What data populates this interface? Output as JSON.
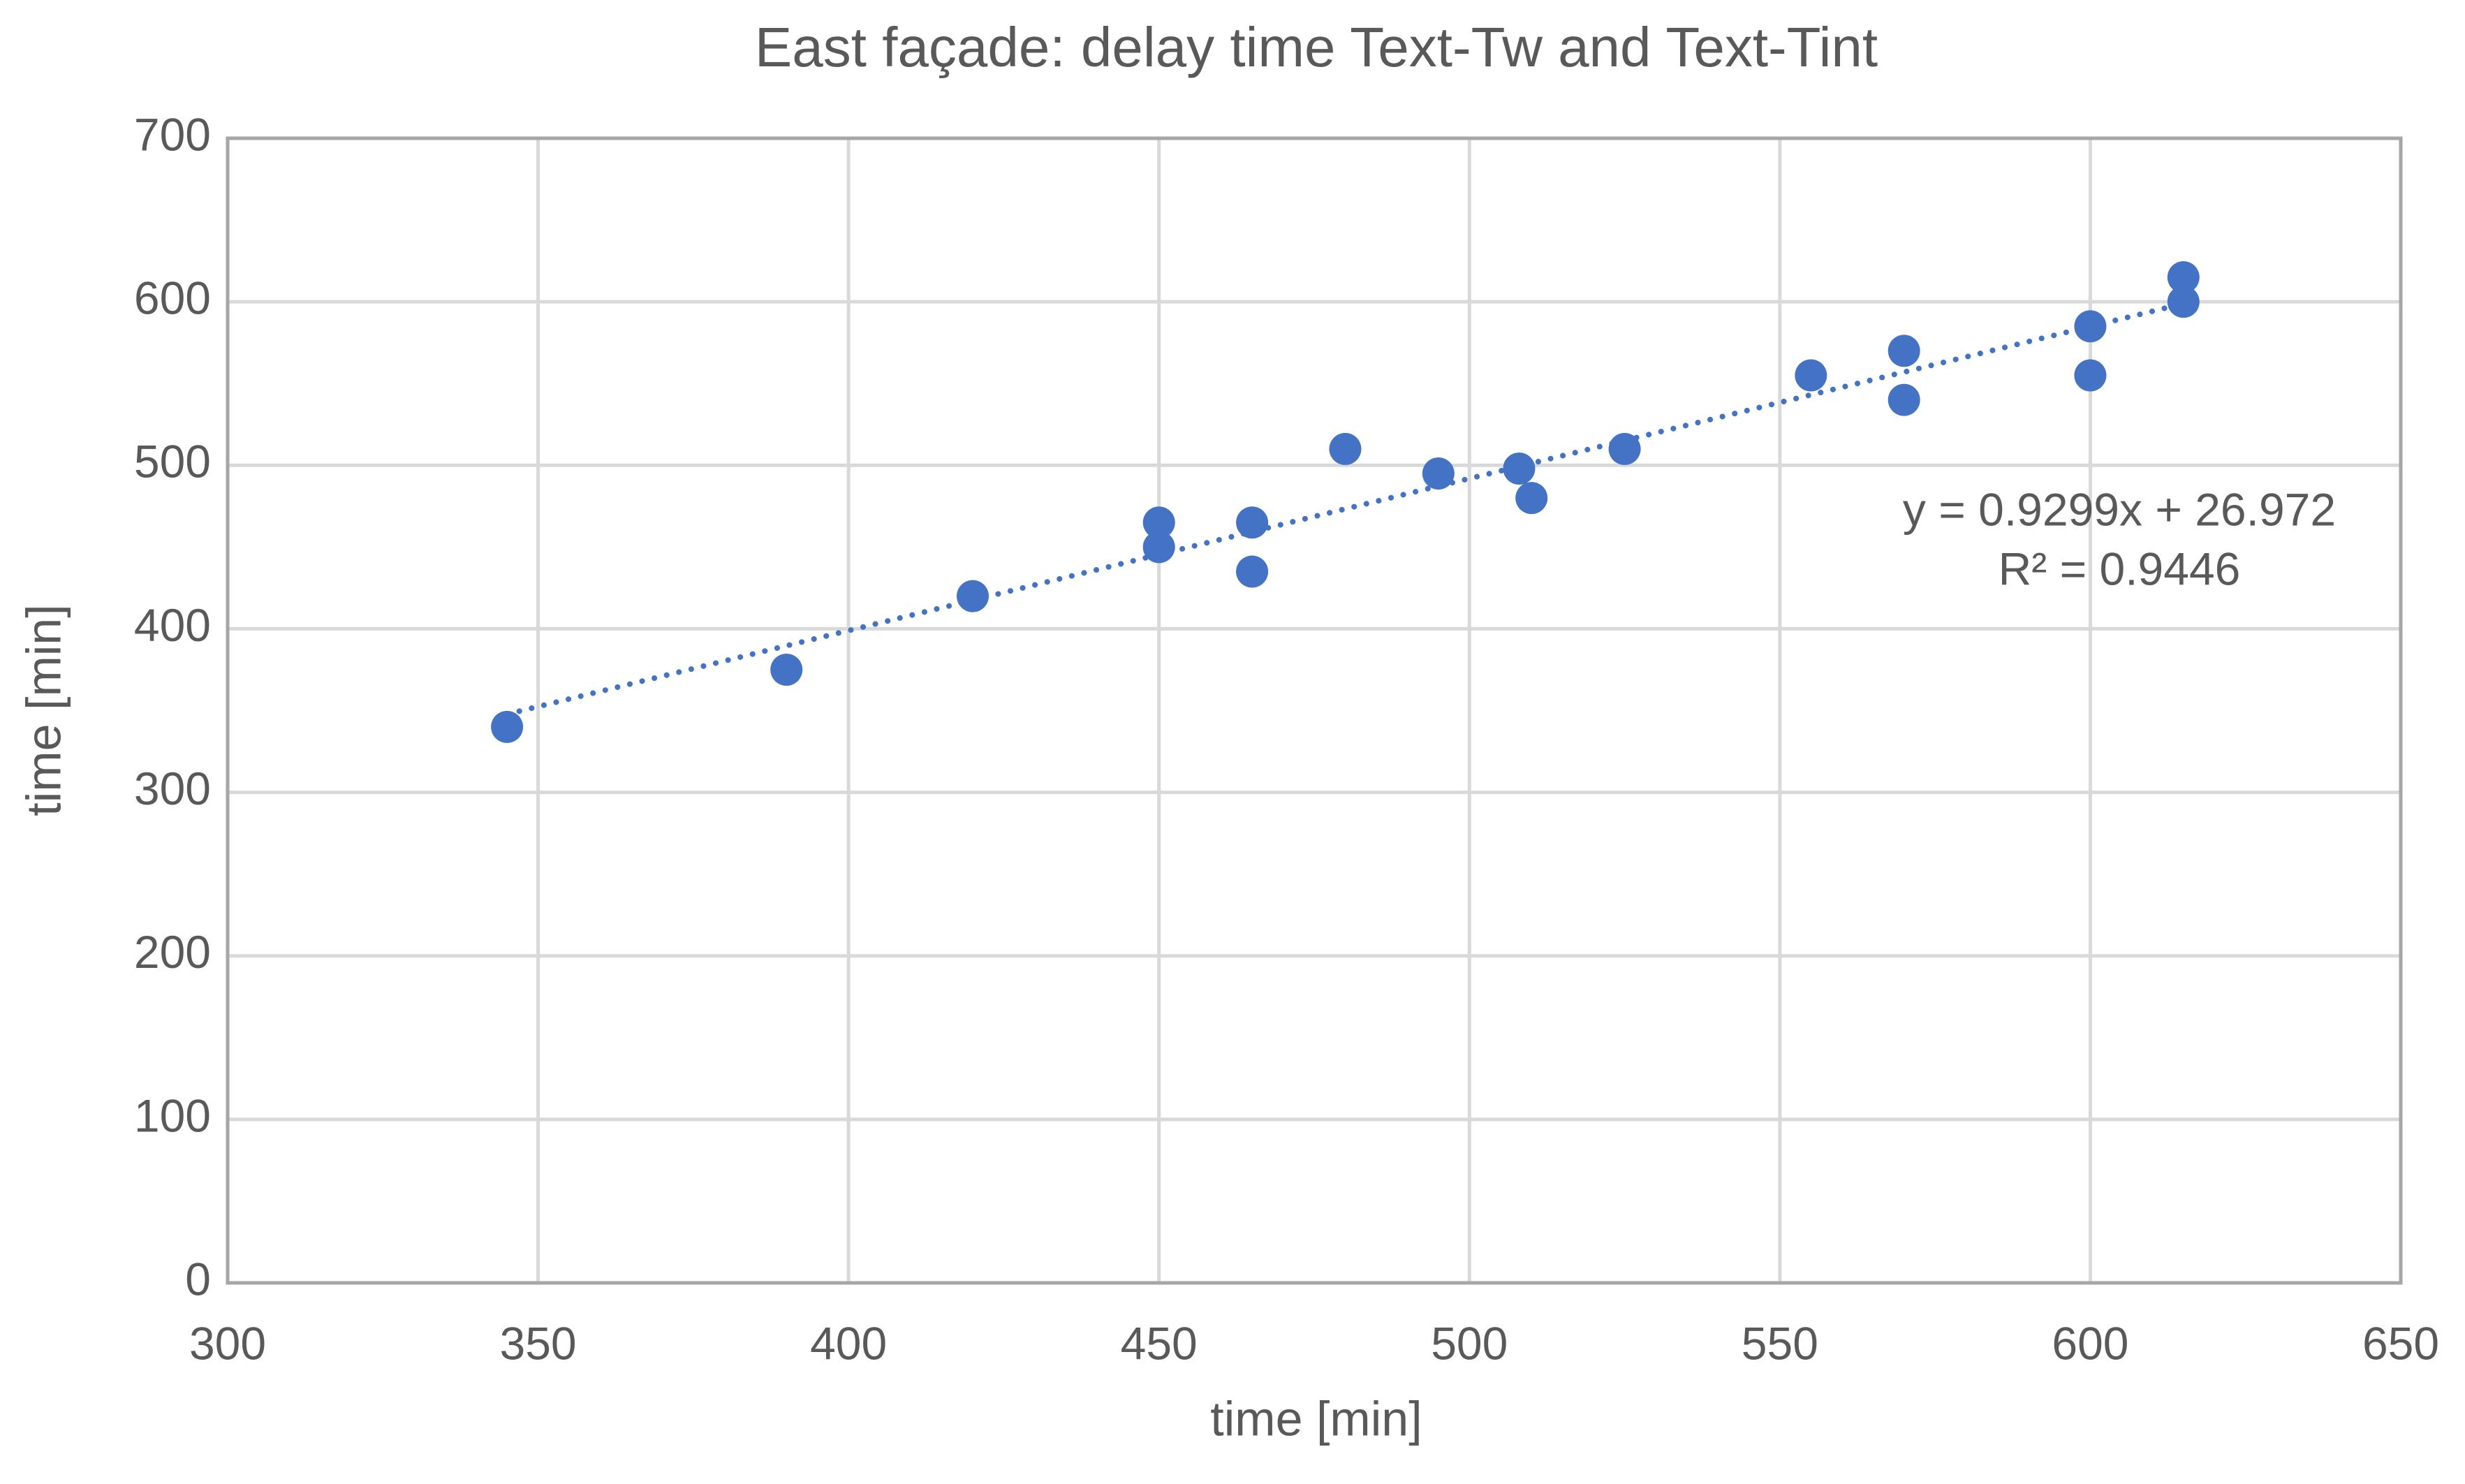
{
  "chart_data": {
    "type": "scatter",
    "title": "East façade: delay time Text-Tw and Text-Tint",
    "x_label": "time [min]",
    "y_label": "time [min]",
    "x": [
      345,
      390,
      420,
      450,
      450,
      465,
      465,
      480,
      495,
      508,
      510,
      525,
      555,
      570,
      570,
      600,
      600,
      615,
      615
    ],
    "series": [
      {
        "color": "#4472c4",
        "values": [
          340,
          375,
          420,
          465,
          450,
          465,
          435,
          510,
          495,
          498,
          480,
          510,
          555,
          570,
          540,
          585,
          555,
          615,
          600
        ]
      }
    ],
    "trendline": {
      "slope": 0.9299,
      "intercept": 26.972,
      "style": "dotted",
      "annotation": [
        "y = 0.9299x + 26.972",
        "R² = 0.9446"
      ]
    },
    "xlim": [
      300,
      650
    ],
    "xticks": [
      300,
      350,
      400,
      450,
      500,
      550,
      600,
      650
    ],
    "ylim": [
      0,
      700
    ],
    "yticks": [
      0,
      100,
      200,
      300,
      400,
      500,
      600,
      700
    ],
    "grid": true
  }
}
